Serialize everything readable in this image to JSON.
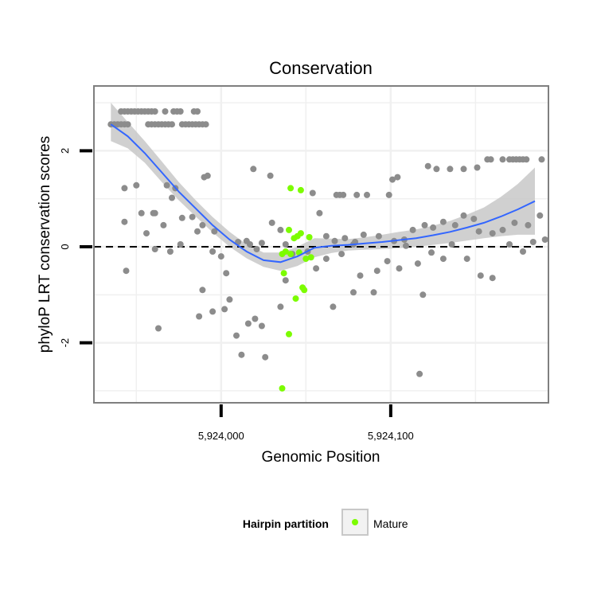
{
  "chart_data": {
    "type": "scatter",
    "title": "Conservation",
    "xlabel": "Genomic Position",
    "ylabel": "phyloP LRT conservation scores",
    "xlim": [
      5923925,
      5924193
    ],
    "ylim": [
      -3.25,
      3.35
    ],
    "x_ticks": [
      {
        "value": 5924000,
        "label": "5,924,000"
      },
      {
        "value": 5924100,
        "label": "5,924,100"
      }
    ],
    "y_ticks": [
      {
        "value": -2,
        "label": "-2"
      },
      {
        "value": 0,
        "label": "0"
      },
      {
        "value": 2,
        "label": "2"
      }
    ],
    "grid": true,
    "reference_line": {
      "y": 0,
      "style": "dashed",
      "color": "#000000"
    },
    "legend": {
      "title": "Hairpin partition",
      "position": "bottom",
      "entries": [
        {
          "label": "Mature",
          "color": "#7cfc00"
        }
      ]
    },
    "colors": {
      "other_points": "#8c8c8c",
      "mature_points": "#7cfc00",
      "smooth_line": "#3366ff",
      "ci_band": "#c8c8c8",
      "panel_border": "#7f7f7f",
      "grid": "#f0f0f0"
    },
    "series": [
      {
        "color": "#8c8c8c",
        "points": [
          [
            5923941,
            2.82
          ],
          [
            5923943,
            2.82
          ],
          [
            5923945,
            2.82
          ],
          [
            5923947,
            2.82
          ],
          [
            5923949,
            2.82
          ],
          [
            5923951,
            2.82
          ],
          [
            5923953,
            2.82
          ],
          [
            5923955,
            2.82
          ],
          [
            5923957,
            2.82
          ],
          [
            5923959,
            2.82
          ],
          [
            5923961,
            2.82
          ],
          [
            5923967,
            2.82
          ],
          [
            5923972,
            2.82
          ],
          [
            5923974,
            2.82
          ],
          [
            5923976,
            2.82
          ],
          [
            5923984,
            2.82
          ],
          [
            5923986,
            2.82
          ],
          [
            5923935,
            2.55
          ],
          [
            5923937,
            2.55
          ],
          [
            5923939,
            2.55
          ],
          [
            5923941,
            2.55
          ],
          [
            5923943,
            2.55
          ],
          [
            5923945,
            2.55
          ],
          [
            5923957,
            2.55
          ],
          [
            5923959,
            2.55
          ],
          [
            5923961,
            2.55
          ],
          [
            5923963,
            2.55
          ],
          [
            5923965,
            2.55
          ],
          [
            5923967,
            2.55
          ],
          [
            5923969,
            2.55
          ],
          [
            5923971,
            2.55
          ],
          [
            5923977,
            2.55
          ],
          [
            5923979,
            2.55
          ],
          [
            5923981,
            2.55
          ],
          [
            5923983,
            2.55
          ],
          [
            5923985,
            2.55
          ],
          [
            5923987,
            2.55
          ],
          [
            5923989,
            2.55
          ],
          [
            5923991,
            2.55
          ],
          [
            5924054,
            1.12
          ],
          [
            5924068,
            1.08
          ],
          [
            5924070,
            1.08
          ],
          [
            5924072,
            1.08
          ],
          [
            5924080,
            1.08
          ],
          [
            5924086,
            1.08
          ],
          [
            5924099,
            1.08
          ],
          [
            5924101,
            1.4
          ],
          [
            5924104,
            1.45
          ],
          [
            5924122,
            1.68
          ],
          [
            5924127,
            1.62
          ],
          [
            5924135,
            1.62
          ],
          [
            5924143,
            1.62
          ],
          [
            5924151,
            1.65
          ],
          [
            5924157,
            1.82
          ],
          [
            5924159,
            1.82
          ],
          [
            5924166,
            1.82
          ],
          [
            5924170,
            1.82
          ],
          [
            5924172,
            1.82
          ],
          [
            5924174,
            1.82
          ],
          [
            5924176,
            1.82
          ],
          [
            5924178,
            1.82
          ],
          [
            5924180,
            1.82
          ],
          [
            5924189,
            1.82
          ],
          [
            5923968,
            1.28
          ],
          [
            5923973,
            1.22
          ],
          [
            5923990,
            1.45
          ],
          [
            5923992,
            1.48
          ],
          [
            5924019,
            1.62
          ],
          [
            5924029,
            1.48
          ],
          [
            5923943,
            1.22
          ],
          [
            5923950,
            1.28
          ],
          [
            5923960,
            0.7
          ],
          [
            5923943,
            0.52
          ],
          [
            5923953,
            0.7
          ],
          [
            5923961,
            0.7
          ],
          [
            5923966,
            0.45
          ],
          [
            5923971,
            1.02
          ],
          [
            5923977,
            0.6
          ],
          [
            5923983,
            0.62
          ],
          [
            5923989,
            0.45
          ],
          [
            5923996,
            0.32
          ],
          [
            5924010,
            0.1
          ],
          [
            5924017,
            0.05
          ],
          [
            5924030,
            0.5
          ],
          [
            5924035,
            0.35
          ],
          [
            5924051,
            -0.1
          ],
          [
            5924058,
            0.7
          ],
          [
            5924062,
            0.22
          ],
          [
            5924067,
            0.12
          ],
          [
            5924073,
            0.18
          ],
          [
            5924079,
            0.1
          ],
          [
            5924084,
            0.25
          ],
          [
            5924093,
            0.22
          ],
          [
            5924102,
            0.12
          ],
          [
            5924108,
            0.15
          ],
          [
            5924113,
            0.35
          ],
          [
            5924120,
            0.45
          ],
          [
            5924125,
            0.4
          ],
          [
            5924131,
            0.52
          ],
          [
            5924138,
            0.45
          ],
          [
            5924143,
            0.65
          ],
          [
            5924149,
            0.58
          ],
          [
            5924152,
            0.32
          ],
          [
            5924160,
            0.28
          ],
          [
            5924166,
            0.35
          ],
          [
            5924173,
            0.5
          ],
          [
            5924181,
            0.45
          ],
          [
            5924188,
            0.65
          ],
          [
            5923944,
            -0.5
          ],
          [
            5923956,
            0.28
          ],
          [
            5923961,
            -0.05
          ],
          [
            5923970,
            -0.1
          ],
          [
            5923976,
            0.05
          ],
          [
            5923986,
            0.32
          ],
          [
            5923995,
            -0.1
          ],
          [
            5924000,
            -0.2
          ],
          [
            5924003,
            -0.55
          ],
          [
            5924015,
            0.12
          ],
          [
            5924021,
            -0.05
          ],
          [
            5924024,
            0.08
          ],
          [
            5924038,
            0.05
          ],
          [
            5924042,
            -0.15
          ],
          [
            5924056,
            -0.45
          ],
          [
            5924062,
            -0.25
          ],
          [
            5924071,
            -0.15
          ],
          [
            5924078,
            0.05
          ],
          [
            5924082,
            -0.6
          ],
          [
            5924092,
            -0.5
          ],
          [
            5924098,
            -0.3
          ],
          [
            5924105,
            -0.45
          ],
          [
            5924109,
            0.02
          ],
          [
            5924116,
            -0.35
          ],
          [
            5924124,
            -0.12
          ],
          [
            5924131,
            -0.25
          ],
          [
            5924136,
            0.05
          ],
          [
            5924145,
            -0.25
          ],
          [
            5924153,
            -0.6
          ],
          [
            5924160,
            -0.65
          ],
          [
            5924170,
            0.05
          ],
          [
            5924178,
            -0.1
          ],
          [
            5924184,
            0.1
          ],
          [
            5924191,
            0.15
          ],
          [
            5923963,
            -1.7
          ],
          [
            5923987,
            -1.45
          ],
          [
            5923989,
            -0.9
          ],
          [
            5923995,
            -1.35
          ],
          [
            5924002,
            -1.3
          ],
          [
            5924005,
            -1.1
          ],
          [
            5924009,
            -1.85
          ],
          [
            5924012,
            -2.25
          ],
          [
            5924016,
            -1.6
          ],
          [
            5924020,
            -1.5
          ],
          [
            5924024,
            -1.65
          ],
          [
            5924026,
            -2.3
          ],
          [
            5924035,
            -1.25
          ],
          [
            5924038,
            -0.7
          ],
          [
            5924066,
            -1.25
          ],
          [
            5924078,
            -0.95
          ],
          [
            5924090,
            -0.95
          ],
          [
            5924117,
            -2.65
          ],
          [
            5924119,
            -1.0
          ]
        ]
      },
      {
        "name": "Mature",
        "color": "#7cfc00",
        "points": [
          [
            5924041,
            1.22
          ],
          [
            5924047,
            1.18
          ],
          [
            5924040,
            0.35
          ],
          [
            5924043,
            0.18
          ],
          [
            5924045,
            0.22
          ],
          [
            5924047,
            0.28
          ],
          [
            5924052,
            0.2
          ],
          [
            5924036,
            -0.15
          ],
          [
            5924038,
            -0.1
          ],
          [
            5924041,
            -0.15
          ],
          [
            5924046,
            -0.12
          ],
          [
            5924050,
            -0.25
          ],
          [
            5924053,
            -0.22
          ],
          [
            5924037,
            -0.55
          ],
          [
            5924048,
            -0.85
          ],
          [
            5924049,
            -0.9
          ],
          [
            5924044,
            -1.08
          ],
          [
            5924040,
            -1.82
          ],
          [
            5924036,
            -2.95
          ]
        ]
      }
    ],
    "smooth": {
      "x": [
        5923935,
        5923945,
        5923955,
        5923965,
        5923975,
        5923985,
        5923995,
        5924005,
        5924015,
        5924025,
        5924035,
        5924045,
        5924055,
        5924065,
        5924075,
        5924085,
        5924095,
        5924105,
        5924115,
        5924125,
        5924135,
        5924145,
        5924155,
        5924165,
        5924175,
        5924185
      ],
      "y": [
        2.55,
        2.3,
        1.95,
        1.55,
        1.15,
        0.8,
        0.45,
        0.15,
        -0.1,
        -0.28,
        -0.32,
        -0.2,
        -0.02,
        0.02,
        0.04,
        0.07,
        0.1,
        0.14,
        0.18,
        0.24,
        0.31,
        0.4,
        0.5,
        0.63,
        0.78,
        0.95
      ],
      "lower": [
        2.2,
        2.05,
        1.75,
        1.35,
        0.97,
        0.63,
        0.3,
        0.0,
        -0.24,
        -0.42,
        -0.5,
        -0.4,
        -0.22,
        -0.13,
        -0.08,
        -0.06,
        -0.05,
        -0.03,
        0.0,
        0.04,
        0.08,
        0.13,
        0.18,
        0.22,
        0.25,
        0.25
      ],
      "upper": [
        3.0,
        2.6,
        2.2,
        1.78,
        1.35,
        0.97,
        0.62,
        0.31,
        0.05,
        -0.12,
        -0.12,
        0.0,
        0.18,
        0.17,
        0.16,
        0.2,
        0.25,
        0.31,
        0.36,
        0.44,
        0.54,
        0.67,
        0.82,
        1.04,
        1.31,
        1.65
      ]
    }
  }
}
